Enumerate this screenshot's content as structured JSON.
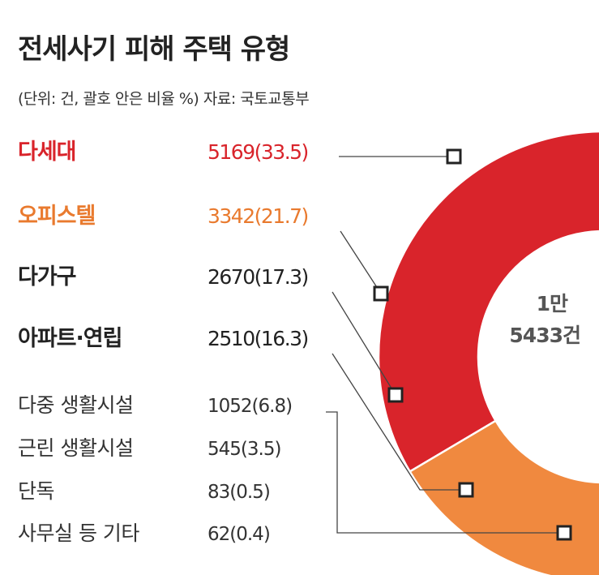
{
  "chart_data": {
    "type": "pie",
    "title": "전세사기 피해 주택 유형",
    "subtitle": "(단위: 건, 괄호 안은 비율 %) 자료: 국토교통부",
    "total_line1": "1만",
    "total_line2": "5433건",
    "slices": [
      {
        "label": "다세대",
        "value": 5169,
        "percent": 33.5,
        "value_text": "5169(33.5)",
        "color": "#d9242b",
        "emphasis": true
      },
      {
        "label": "오피스텔",
        "value": 3342,
        "percent": 21.7,
        "value_text": "3342(21.7)",
        "color": "#f0893f",
        "emphasis": true
      },
      {
        "label": "다가구",
        "value": 2670,
        "percent": 17.3,
        "value_text": "2670(17.3)",
        "color": "#6b7f89",
        "emphasis": true
      },
      {
        "label": "아파트·연립",
        "value": 2510,
        "percent": 16.3,
        "value_text": "2510(16.3)",
        "color": "#5f737d",
        "emphasis": true
      },
      {
        "label": "다중 생활시설",
        "value": 1052,
        "percent": 6.8,
        "value_text": "1052(6.8)",
        "color": "#c3ccd1",
        "emphasis": false
      },
      {
        "label": "근린 생활시설",
        "value": 545,
        "percent": 3.5,
        "value_text": "545(3.5)",
        "color": "#d3dade",
        "emphasis": false
      },
      {
        "label": "단독",
        "value": 83,
        "percent": 0.5,
        "value_text": "83(0.5)",
        "color": "#c3ccd1",
        "emphasis": false
      },
      {
        "label": "사무실 등 기타",
        "value": 62,
        "percent": 0.4,
        "value_text": "62(0.4)",
        "color": "#d3dade",
        "emphasis": false
      }
    ],
    "label_colors": [
      "#d9242b",
      "#e97a2e",
      "#222222",
      "#222222",
      "#333333",
      "#333333",
      "#333333",
      "#333333"
    ],
    "leader_color": "#444444"
  }
}
